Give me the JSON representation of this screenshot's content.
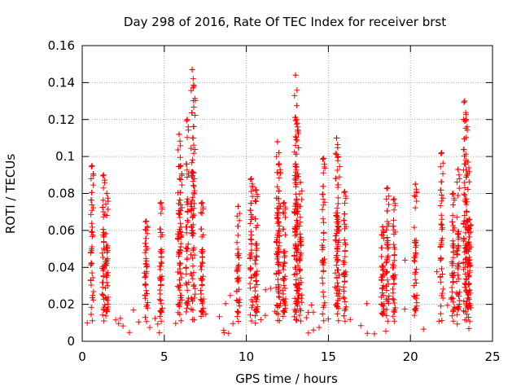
{
  "chart_data": {
    "type": "scatter",
    "title": "Day 298 of 2016, Rate Of TEC Index for receiver brst",
    "xlabel": "GPS time / hours",
    "ylabel": "ROTI / TECUs",
    "xlim": [
      0,
      25
    ],
    "ylim": [
      0,
      0.16
    ],
    "xticks": [
      0,
      5,
      10,
      15,
      20,
      25
    ],
    "xtick_labels": [
      "0",
      "5",
      "10",
      "15",
      "20",
      "25"
    ],
    "yticks": [
      0,
      0.02,
      0.04,
      0.06,
      0.08,
      0.1,
      0.12,
      0.14,
      0.16
    ],
    "ytick_labels": [
      "0",
      "0.02",
      "0.04",
      "0.06",
      "0.08",
      "0.1",
      "0.12",
      "0.14",
      "0.16"
    ],
    "grid": true,
    "marker": "+",
    "color": "#ff0000",
    "x_data_range": [
      0,
      23.7
    ],
    "series": [
      {
        "name": "ROTI",
        "note": "dense continuous cloud of points, baseline roughly 0.005-0.03 TECU, extending to the peak values listed",
        "x": [
          0.6,
          1.3,
          1.5,
          3.9,
          4.8,
          5.9,
          6.0,
          6.4,
          6.7,
          6.8,
          7.3,
          9.5,
          10.3,
          10.6,
          11.9,
          12.0,
          12.3,
          13.0,
          13.05,
          13.1,
          13.3,
          14.7,
          15.5,
          15.6,
          16.0,
          18.3,
          18.6,
          19.0,
          20.3,
          21.9,
          22.6,
          22.9,
          23.3,
          23.4,
          23.5,
          23.6
        ],
        "y": [
          0.095,
          0.09,
          0.08,
          0.065,
          0.075,
          0.112,
          0.095,
          0.12,
          0.147,
          0.138,
          0.075,
          0.073,
          0.088,
          0.082,
          0.108,
          0.096,
          0.075,
          0.144,
          0.12,
          0.118,
          0.086,
          0.099,
          0.11,
          0.1,
          0.081,
          0.062,
          0.083,
          0.077,
          0.085,
          0.102,
          0.08,
          0.093,
          0.13,
          0.12,
          0.097,
          0.066
        ]
      }
    ]
  }
}
